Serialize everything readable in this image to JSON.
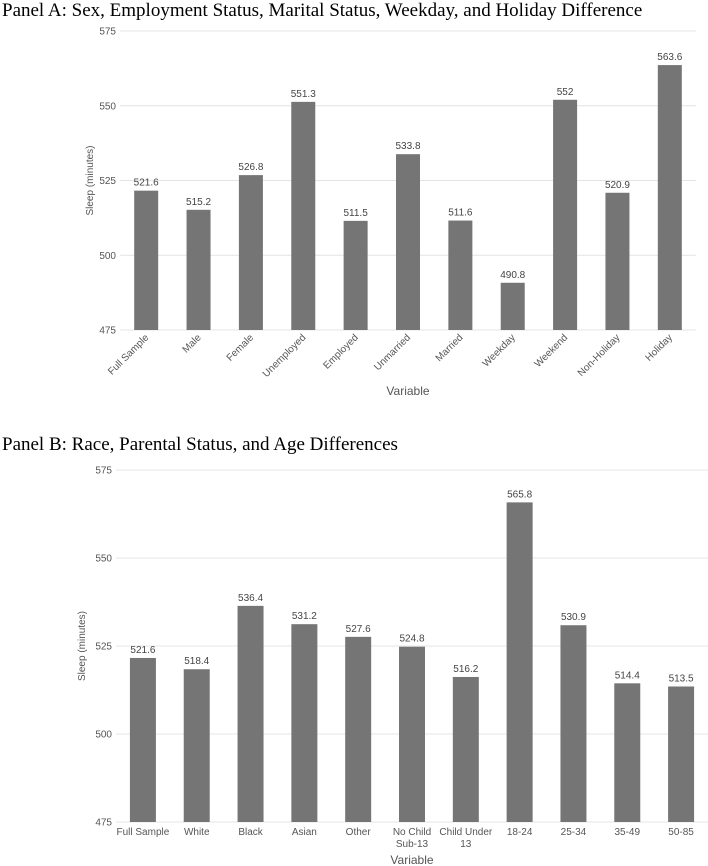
{
  "chart_data": [
    {
      "type": "bar",
      "title": "Panel A: Sex, Employment Status, Marital Status, Weekday, and Holiday Difference",
      "xlabel": "Variable",
      "ylabel": "Sleep (minutes)",
      "ylim": [
        475,
        575
      ],
      "yticks": [
        "475",
        "500",
        "525",
        "550",
        "575"
      ],
      "categories": [
        "Full Sample",
        "Male",
        "Female",
        "Unemployed",
        "Employed",
        "Unmarried",
        "Married",
        "Weekday",
        "Weekend",
        "Non-Holiday",
        "Holiday"
      ],
      "values": [
        521.6,
        515.2,
        526.8,
        551.3,
        511.5,
        533.8,
        511.6,
        490.8,
        552,
        520.9,
        563.6
      ],
      "value_labels": [
        "521.6",
        "515.2",
        "526.8",
        "551.3",
        "511.5",
        "533.8",
        "511.6",
        "490.8",
        "552",
        "520.9",
        "563.6"
      ],
      "grid": true,
      "tick_rotation": "rotated"
    },
    {
      "type": "bar",
      "title": "Panel B: Race, Parental Status, and Age Differences",
      "xlabel": "Variable",
      "ylabel": "Sleep (minutes)",
      "ylim": [
        475,
        575
      ],
      "yticks": [
        "475",
        "500",
        "525",
        "550",
        "575"
      ],
      "categories": [
        [
          "Full Sample"
        ],
        [
          "White"
        ],
        [
          "Black"
        ],
        [
          "Asian"
        ],
        [
          "Other"
        ],
        [
          "No Child",
          "Sub-13"
        ],
        [
          "Child Under",
          "13"
        ],
        [
          "18-24"
        ],
        [
          "25-34"
        ],
        [
          "35-49"
        ],
        [
          "50-85"
        ]
      ],
      "values": [
        521.6,
        518.4,
        536.4,
        531.2,
        527.6,
        524.8,
        516.2,
        565.8,
        530.9,
        514.4,
        513.5
      ],
      "value_labels": [
        "521.6",
        "518.4",
        "536.4",
        "531.2",
        "527.6",
        "524.8",
        "516.2",
        "565.8",
        "530.9",
        "514.4",
        "513.5"
      ],
      "grid": true,
      "tick_rotation": "horizontal"
    }
  ]
}
